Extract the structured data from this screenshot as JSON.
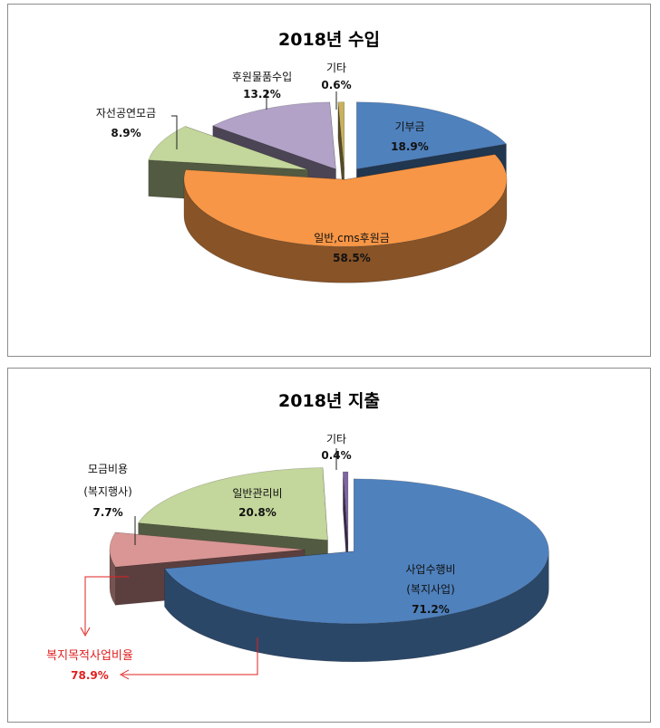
{
  "chart_data": [
    {
      "type": "pie",
      "title": "2018년 수입",
      "slices": [
        {
          "label": "기부금",
          "value": 18.9,
          "value_label": "18.9%",
          "color": "#4f81bd"
        },
        {
          "label": "일반,cms후원금",
          "value": 58.5,
          "value_label": "58.5%",
          "color": "#f79646"
        },
        {
          "label": "자선공연모금",
          "value": 8.9,
          "value_label": "8.9%",
          "color": "#c3d69b"
        },
        {
          "label": "후원물품수입",
          "value": 13.2,
          "value_label": "13.2%",
          "color": "#b2a2c7"
        },
        {
          "label": "기타",
          "value": 0.6,
          "value_label": "0.6%",
          "color": "#c9b15d"
        }
      ]
    },
    {
      "type": "pie",
      "title": "2018년 지출",
      "slices": [
        {
          "label": "사업수행비",
          "label2": "(복지사업)",
          "value": 71.2,
          "value_label": "71.2%",
          "color": "#4f81bd"
        },
        {
          "label": "모금비용",
          "label2": "(복지행사)",
          "value": 7.7,
          "value_label": "7.7%",
          "color": "#d99694"
        },
        {
          "label": "일반관리비",
          "value": 20.8,
          "value_label": "20.8%",
          "color": "#c3d69b"
        },
        {
          "label": "기타",
          "value": 0.4,
          "value_label": "0.4%",
          "color": "#8064a2"
        }
      ],
      "annotation": {
        "label": "복지목적사업비율",
        "value": "78.9%",
        "color": "#e02020"
      }
    }
  ]
}
